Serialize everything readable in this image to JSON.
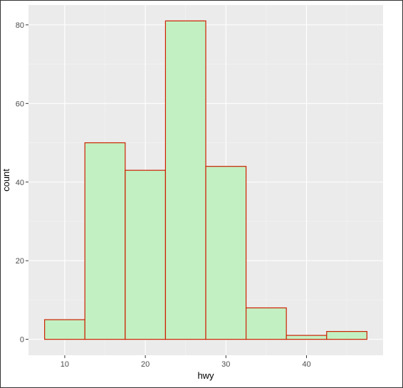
{
  "chart_data": {
    "type": "bar",
    "subtype": "histogram",
    "title": "",
    "xlabel": "hwy",
    "ylabel": "count",
    "bins": [
      {
        "x_start": 7.5,
        "x_end": 12.5,
        "count": 5
      },
      {
        "x_start": 12.5,
        "x_end": 17.5,
        "count": 50
      },
      {
        "x_start": 17.5,
        "x_end": 22.5,
        "count": 43
      },
      {
        "x_start": 22.5,
        "x_end": 27.5,
        "count": 81
      },
      {
        "x_start": 27.5,
        "x_end": 32.5,
        "count": 44
      },
      {
        "x_start": 32.5,
        "x_end": 37.5,
        "count": 8
      },
      {
        "x_start": 37.5,
        "x_end": 42.5,
        "count": 1
      },
      {
        "x_start": 42.5,
        "x_end": 47.5,
        "count": 2
      }
    ],
    "x_ticks": [
      10,
      20,
      30,
      40
    ],
    "y_ticks": [
      0,
      20,
      40,
      60,
      80
    ],
    "xlim": [
      5.5,
      49.5
    ],
    "ylim": [
      -4.05,
      85.05
    ],
    "grid": true,
    "legend": "none",
    "colors": {
      "panel_background": "#ebebeb",
      "grid_major": "#ffffff",
      "grid_minor": "#f5f5f5",
      "bar_fill": "#c2f0c2",
      "bar_outline": "#cc2200"
    }
  }
}
